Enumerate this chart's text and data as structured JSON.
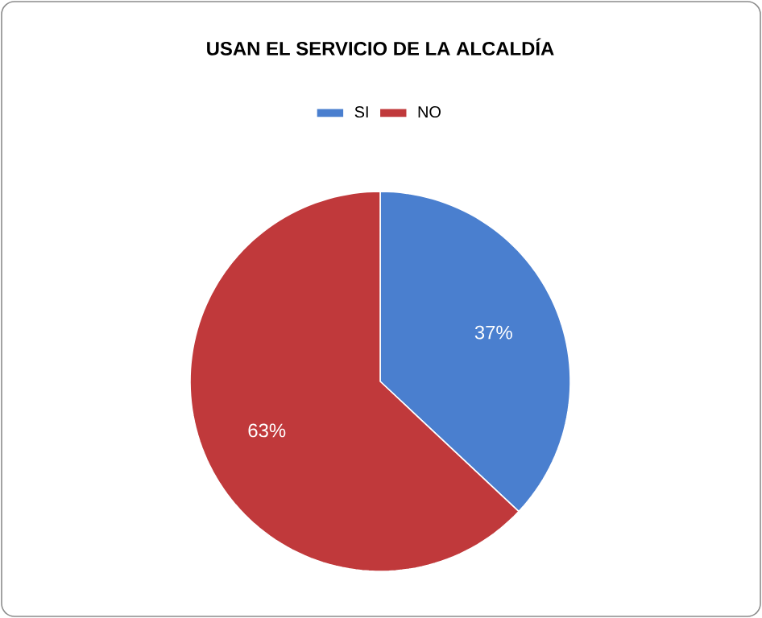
{
  "chart_data": {
    "type": "pie",
    "title": "USAN EL SERVICIO DE LA ALCALDÍA",
    "categories": [
      "SI",
      "NO"
    ],
    "values": [
      37,
      63
    ],
    "colors": [
      "#4a7fcf",
      "#c0393b"
    ],
    "value_labels": [
      "37%",
      "63%"
    ],
    "legend": "top"
  }
}
